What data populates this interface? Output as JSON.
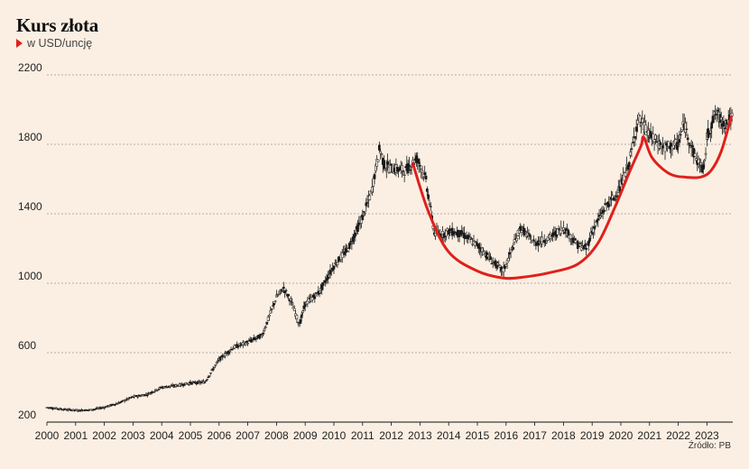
{
  "header": {
    "title": "Kurs złota",
    "subtitle": "w USD/uncję",
    "source": "Źródło: PB"
  },
  "colors": {
    "background": "#fbefe3",
    "candles": "#1a1a1a",
    "trend": "#e0201b",
    "grid": "#999999"
  },
  "chart_data": {
    "type": "line",
    "title": "Kurs złota",
    "subtitle": "w USD/uncję",
    "ylim": [
      200,
      2200
    ],
    "xlim": [
      2000,
      2023.9
    ],
    "y_ticks": [
      200,
      600,
      1000,
      1400,
      1800,
      2200
    ],
    "x_ticks": [
      "2000",
      "2001",
      "2002",
      "2003",
      "2004",
      "2005",
      "2006",
      "2007",
      "2008",
      "2009",
      "2010",
      "2011",
      "2012",
      "2013",
      "2014",
      "2015",
      "2016",
      "2017",
      "2018",
      "2019",
      "2020",
      "2021",
      "2022",
      "2023"
    ],
    "grid": "horizontal dashed",
    "series": [
      {
        "type": "candlestick",
        "x": [
          2000,
          2000.5,
          2001,
          2001.5,
          2002,
          2002.5,
          2003,
          2003.5,
          2004,
          2004.5,
          2005,
          2005.5,
          2006,
          2006.5,
          2007,
          2007.5,
          2008,
          2008.25,
          2008.5,
          2008.8,
          2009,
          2009.5,
          2010,
          2010.5,
          2011,
          2011.3,
          2011.6,
          2011.75,
          2012,
          2012.5,
          2012.9,
          2013.2,
          2013.5,
          2013.8,
          2014,
          2014.5,
          2015,
          2015.5,
          2015.9,
          2016.1,
          2016.5,
          2017,
          2017.5,
          2018,
          2018.5,
          2018.8,
          2019,
          2019.5,
          2019.8,
          2020,
          2020.3,
          2020.6,
          2020.9,
          2021,
          2021.5,
          2022,
          2022.2,
          2022.6,
          2022.9,
          2023,
          2023.3,
          2023.6,
          2023.85
        ],
        "values": [
          285,
          275,
          268,
          270,
          285,
          310,
          345,
          360,
          400,
          410,
          425,
          430,
          560,
          630,
          660,
          700,
          920,
          970,
          900,
          760,
          880,
          950,
          1100,
          1200,
          1380,
          1520,
          1780,
          1680,
          1660,
          1650,
          1720,
          1600,
          1290,
          1280,
          1300,
          1280,
          1220,
          1130,
          1070,
          1150,
          1320,
          1230,
          1260,
          1320,
          1220,
          1200,
          1300,
          1450,
          1500,
          1560,
          1700,
          1950,
          1880,
          1850,
          1780,
          1800,
          1920,
          1720,
          1650,
          1840,
          1980,
          1920,
          1950
        ]
      },
      {
        "type": "line",
        "name": "",
        "color": "#e0201b",
        "x": [
          2012.75,
          2013.3,
          2014,
          2015,
          2015.9,
          2016.6,
          2017.5,
          2018.5,
          2019.2,
          2019.8,
          2020.3,
          2020.7,
          2020.8,
          2021.1,
          2021.7,
          2022.3,
          2022.8,
          2023.15,
          2023.5,
          2023.85
        ],
        "values": [
          1690,
          1410,
          1180,
          1070,
          1030,
          1035,
          1060,
          1110,
          1230,
          1440,
          1640,
          1790,
          1840,
          1720,
          1630,
          1610,
          1612,
          1650,
          1760,
          1960
        ]
      }
    ]
  }
}
